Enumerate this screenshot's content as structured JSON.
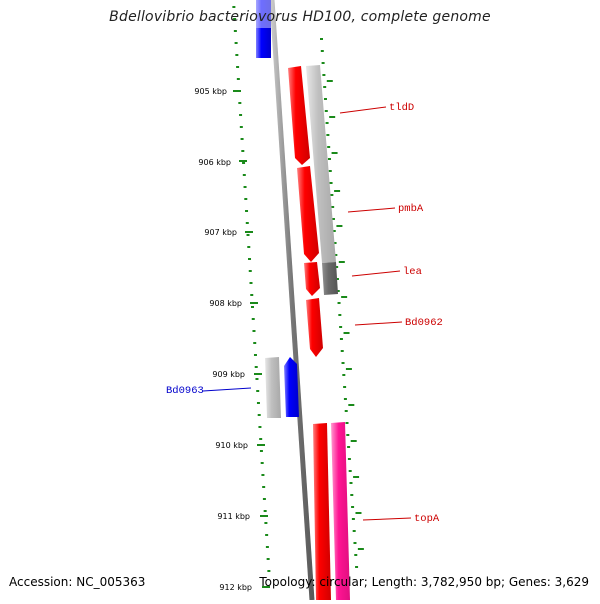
{
  "title": "Bdellovibrio bacteriovorus HD100, complete genome",
  "footer": {
    "accession": "Accession: NC_005363",
    "summary": "Topology: circular; Length: 3,782,950 bp; Genes: 3,629"
  },
  "ticks": [
    "905 kbp",
    "906 kbp",
    "907 kbp",
    "908 kbp",
    "909 kbp",
    "910 kbp",
    "911 kbp",
    "912 kbp"
  ],
  "genes": [
    {
      "name": "tldD",
      "color": "#cc0000",
      "side": "right"
    },
    {
      "name": "pmbA",
      "color": "#cc0000",
      "side": "right"
    },
    {
      "name": "lea",
      "color": "#cc0000",
      "side": "right"
    },
    {
      "name": "Bd0962",
      "color": "#cc0000",
      "side": "right"
    },
    {
      "name": "Bd0963",
      "color": "#0000cc",
      "side": "left"
    },
    {
      "name": "topA",
      "color": "#cc0000",
      "side": "right"
    }
  ],
  "colors": {
    "forward_cds": "#ff0000",
    "reverse_cds": "#0000ff",
    "gene": "#c0c0c0",
    "pseudo_gene": "#ff1493",
    "tick": "#006400",
    "backbone": "#808080"
  }
}
